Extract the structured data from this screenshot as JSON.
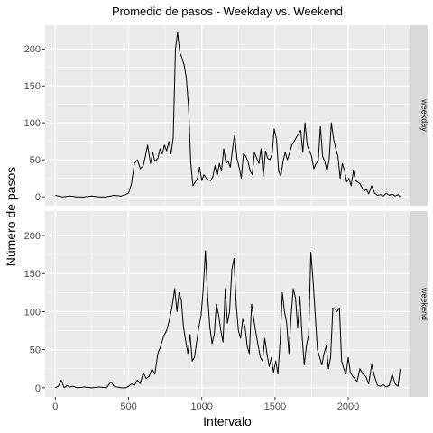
{
  "chart_data": {
    "type": "line",
    "title": "Promedio de pasos - Weekday vs. Weekend",
    "xlabel": "Intervalo",
    "ylabel": "Número de pasos",
    "xlim": [
      -70,
      2425
    ],
    "ylim": [
      -12,
      232
    ],
    "x_ticks": [
      0,
      500,
      1000,
      1500,
      2000
    ],
    "x_tick_labels": [
      "0",
      "500",
      "1000",
      "1500",
      "2000"
    ],
    "y_ticks": [
      0,
      50,
      100,
      150,
      200
    ],
    "y_tick_labels": [
      "0",
      "50",
      "100",
      "150",
      "200"
    ],
    "grid": true,
    "legend": "none",
    "colors": {
      "panel_background": "#ebebeb",
      "grid": "#ffffff",
      "strip_background": "#d9d9d9",
      "line": "#000000"
    },
    "panels": [
      {
        "strip_label": "weekday",
        "series": [
          {
            "x": [
              0,
              50,
              100,
              150,
              200,
              250,
              300,
              350,
              400,
              450,
              480,
              500,
              520,
              540,
              560,
              580,
              600,
              615,
              630,
              650,
              665,
              680,
              700,
              715,
              730,
              745,
              760,
              775,
              790,
              805,
              820,
              835,
              850,
              865,
              880,
              895,
              910,
              925,
              940,
              955,
              970,
              985,
              1000,
              1015,
              1030,
              1045,
              1060,
              1075,
              1090,
              1105,
              1120,
              1135,
              1150,
              1165,
              1180,
              1195,
              1210,
              1225,
              1240,
              1255,
              1270,
              1285,
              1300,
              1315,
              1330,
              1345,
              1360,
              1375,
              1390,
              1405,
              1420,
              1435,
              1450,
              1465,
              1480,
              1495,
              1510,
              1525,
              1540,
              1555,
              1570,
              1585,
              1600,
              1615,
              1630,
              1645,
              1660,
              1675,
              1690,
              1705,
              1720,
              1735,
              1750,
              1765,
              1780,
              1795,
              1810,
              1825,
              1840,
              1855,
              1870,
              1885,
              1900,
              1915,
              1930,
              1945,
              1960,
              1975,
              1990,
              2005,
              2020,
              2035,
              2050,
              2065,
              2080,
              2095,
              2110,
              2125,
              2140,
              2160,
              2180,
              2200,
              2220,
              2240,
              2260,
              2280,
              2300,
              2320,
              2340,
              2355
            ],
            "y": [
              2,
              0,
              1,
              0,
              0,
              1,
              0,
              0,
              2,
              1,
              3,
              5,
              18,
              45,
              50,
              38,
              42,
              55,
              70,
              45,
              60,
              48,
              52,
              65,
              58,
              70,
              62,
              75,
              58,
              80,
              200,
              222,
              195,
              188,
              178,
              160,
              120,
              45,
              15,
              20,
              25,
              40,
              22,
              30,
              25,
              23,
              22,
              27,
              42,
              28,
              45,
              35,
              65,
              45,
              48,
              40,
              65,
              85,
              52,
              40,
              25,
              58,
              55,
              48,
              35,
              30,
              60,
              52,
              45,
              65,
              28,
              62,
              52,
              50,
              58,
              92,
              78,
              35,
              28,
              48,
              60,
              50,
              60,
              70,
              75,
              80,
              85,
              90,
              60,
              100,
              70,
              62,
              55,
              38,
              45,
              48,
              95,
              55,
              48,
              35,
              50,
              100,
              78,
              65,
              55,
              25,
              45,
              35,
              20,
              25,
              15,
              35,
              22,
              20,
              18,
              12,
              8,
              10,
              4,
              15,
              5,
              2,
              3,
              1,
              5,
              2,
              4,
              1,
              3,
              0
            ]
          }
        ]
      },
      {
        "strip_label": "weekend",
        "series": [
          {
            "x": [
              0,
              20,
              40,
              60,
              80,
              100,
              120,
              150,
              200,
              250,
              300,
              350,
              380,
              400,
              420,
              450,
              480,
              500,
              520,
              540,
              560,
              580,
              600,
              620,
              640,
              660,
              680,
              700,
              720,
              740,
              760,
              780,
              800,
              815,
              830,
              845,
              860,
              875,
              890,
              905,
              920,
              935,
              950,
              965,
              980,
              995,
              1010,
              1025,
              1040,
              1055,
              1070,
              1085,
              1100,
              1115,
              1130,
              1145,
              1160,
              1175,
              1190,
              1205,
              1220,
              1235,
              1250,
              1265,
              1280,
              1295,
              1310,
              1325,
              1340,
              1355,
              1370,
              1385,
              1400,
              1415,
              1430,
              1445,
              1460,
              1475,
              1490,
              1505,
              1520,
              1535,
              1550,
              1565,
              1580,
              1595,
              1610,
              1625,
              1640,
              1655,
              1670,
              1685,
              1700,
              1715,
              1730,
              1745,
              1760,
              1775,
              1790,
              1805,
              1820,
              1835,
              1850,
              1865,
              1880,
              1895,
              1910,
              1925,
              1940,
              1955,
              1970,
              1985,
              2000,
              2015,
              2030,
              2045,
              2060,
              2080,
              2100,
              2120,
              2140,
              2160,
              2180,
              2200,
              2220,
              2240,
              2260,
              2280,
              2300,
              2320,
              2340,
              2355
            ],
            "y": [
              0,
              2,
              10,
              0,
              3,
              1,
              2,
              0,
              1,
              0,
              1,
              0,
              8,
              2,
              1,
              0,
              0,
              2,
              5,
              3,
              10,
              5,
              20,
              12,
              15,
              25,
              18,
              45,
              55,
              68,
              75,
              90,
              110,
              130,
              100,
              125,
              115,
              80,
              62,
              45,
              70,
              35,
              40,
              60,
              80,
              95,
              130,
              180,
              120,
              80,
              58,
              70,
              110,
              95,
              75,
              60,
              130,
              85,
              100,
              155,
              170,
              110,
              75,
              65,
              90,
              80,
              55,
              45,
              110,
              90,
              72,
              55,
              40,
              35,
              65,
              45,
              28,
              40,
              20,
              35,
              18,
              60,
              125,
              100,
              85,
              45,
              95,
              130,
              118,
              78,
              120,
              68,
              30,
              55,
              70,
              178,
              140,
              95,
              50,
              40,
              30,
              45,
              55,
              25,
              40,
              105,
              103,
              100,
              105,
              35,
              25,
              18,
              40,
              20,
              15,
              12,
              8,
              25,
              18,
              15,
              5,
              30,
              15,
              3,
              2,
              4,
              1,
              3,
              18,
              5,
              2,
              25
            ]
          }
        ]
      }
    ]
  }
}
